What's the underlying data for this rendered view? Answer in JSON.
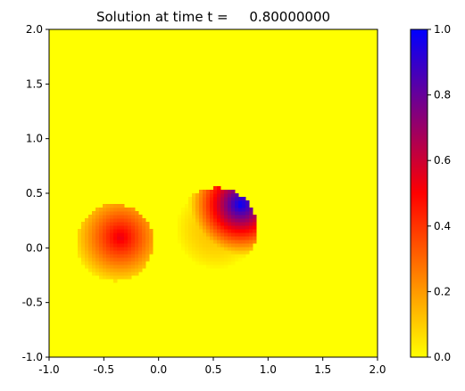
{
  "chart_data": {
    "type": "heatmap",
    "title": "Solution at time t =     0.80000000",
    "xlabel": "",
    "ylabel": "",
    "xlim": [
      -1.0,
      2.0
    ],
    "ylim": [
      -1.0,
      2.0
    ],
    "x_ticks": [
      "-1.0",
      "-0.5",
      "0.0",
      "0.5",
      "1.0",
      "1.5",
      "2.0"
    ],
    "x_tick_values": [
      -1.0,
      -0.5,
      0.0,
      0.5,
      1.0,
      1.5,
      2.0
    ],
    "y_ticks": [
      "-1.0",
      "-0.5",
      "0.0",
      "0.5",
      "1.0",
      "1.5",
      "2.0"
    ],
    "y_tick_values": [
      -1.0,
      -0.5,
      0.0,
      0.5,
      1.0,
      1.5,
      2.0
    ],
    "colorbar": {
      "range": [
        0.0,
        1.0
      ],
      "ticks": [
        "0.0",
        "0.2",
        "0.4",
        "0.6",
        "0.8",
        "1.0"
      ],
      "tick_values": [
        0.0,
        0.2,
        0.4,
        0.6,
        0.7999999999999999,
        1.0
      ],
      "stops": [
        {
          "v": 0.0,
          "color": "#ffff00"
        },
        {
          "v": 0.25,
          "color": "#ff8000"
        },
        {
          "v": 0.5,
          "color": "#ff0000"
        },
        {
          "v": 0.75,
          "color": "#800080"
        },
        {
          "v": 1.0,
          "color": "#0000ff"
        }
      ]
    },
    "background_value": 0.0,
    "blobs": [
      {
        "name": "left",
        "center": [
          -0.35,
          0.1
        ],
        "peak": 0.55,
        "x_range": [
          -0.75,
          -0.05
        ],
        "y_range": [
          -0.3,
          0.4
        ]
      },
      {
        "name": "right",
        "center": [
          0.75,
          0.4
        ],
        "peak": 1.0,
        "x_range": [
          0.15,
          0.9
        ],
        "y_range": [
          -0.2,
          0.55
        ]
      }
    ]
  }
}
